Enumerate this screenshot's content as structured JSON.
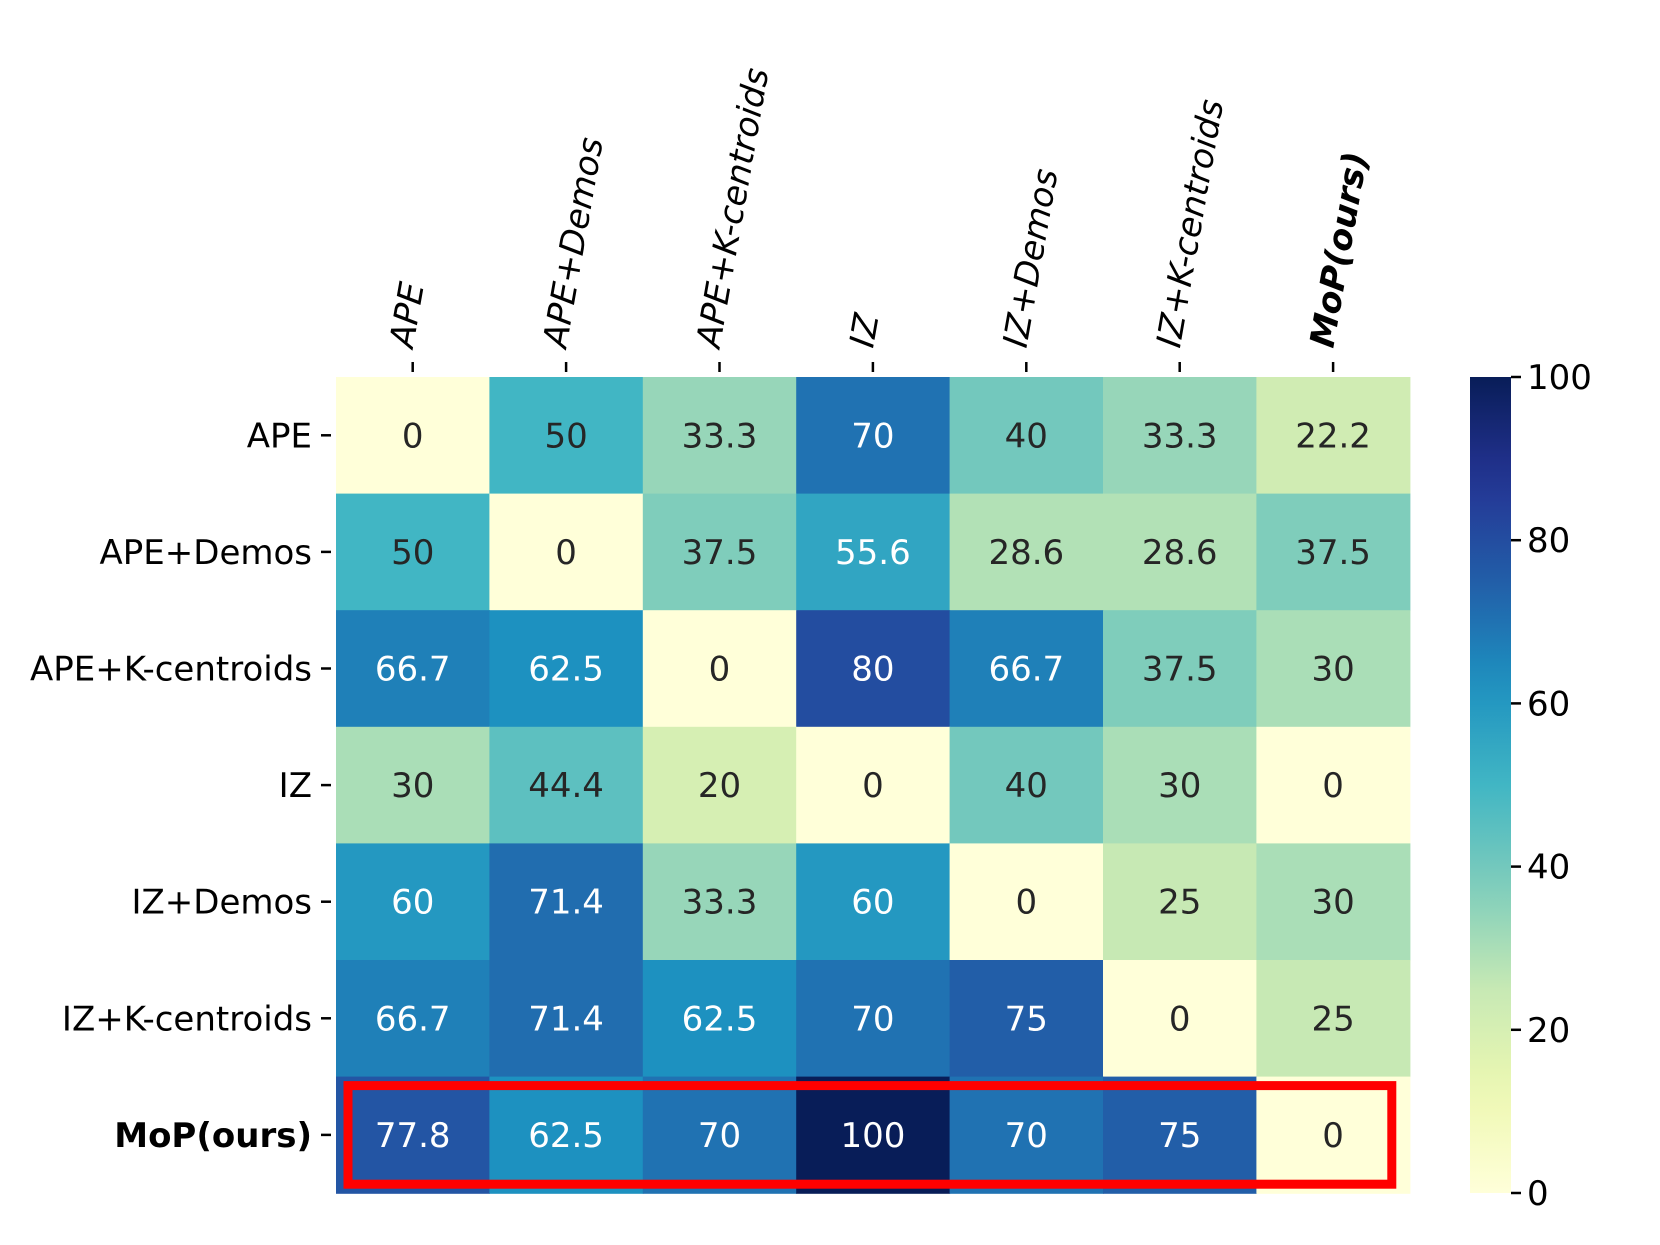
{
  "chart_data": {
    "type": "heatmap",
    "title": "",
    "xlabel": "",
    "ylabel": "",
    "columns": [
      "APE",
      "APE+Demos",
      "APE+K-centroids",
      "IZ",
      "IZ+Demos",
      "IZ+K-centroids",
      "MoP(ours)"
    ],
    "rows": [
      "APE",
      "APE+Demos",
      "APE+K-centroids",
      "IZ",
      "IZ+Demos",
      "IZ+K-centroids",
      "MoP(ours)"
    ],
    "values": [
      [
        0,
        50,
        33.3,
        70,
        40,
        33.3,
        22.2
      ],
      [
        50,
        0,
        37.5,
        55.6,
        28.6,
        28.6,
        37.5
      ],
      [
        66.7,
        62.5,
        0,
        80,
        66.7,
        37.5,
        30
      ],
      [
        30,
        44.4,
        20,
        0,
        40,
        30,
        0
      ],
      [
        60,
        71.4,
        33.3,
        60,
        0,
        25,
        30
      ],
      [
        66.7,
        71.4,
        62.5,
        70,
        75,
        0,
        25
      ],
      [
        77.8,
        62.5,
        70,
        100,
        70,
        75,
        0
      ]
    ],
    "bold_labels": [
      "MoP(ours)"
    ],
    "highlighted_row": "MoP(ours)",
    "highlight_color": "#ff0000",
    "colormap": "YlGnBu",
    "colorbar": {
      "min": 0,
      "max": 100,
      "ticks": [
        0,
        20,
        40,
        60,
        80,
        100
      ]
    }
  }
}
